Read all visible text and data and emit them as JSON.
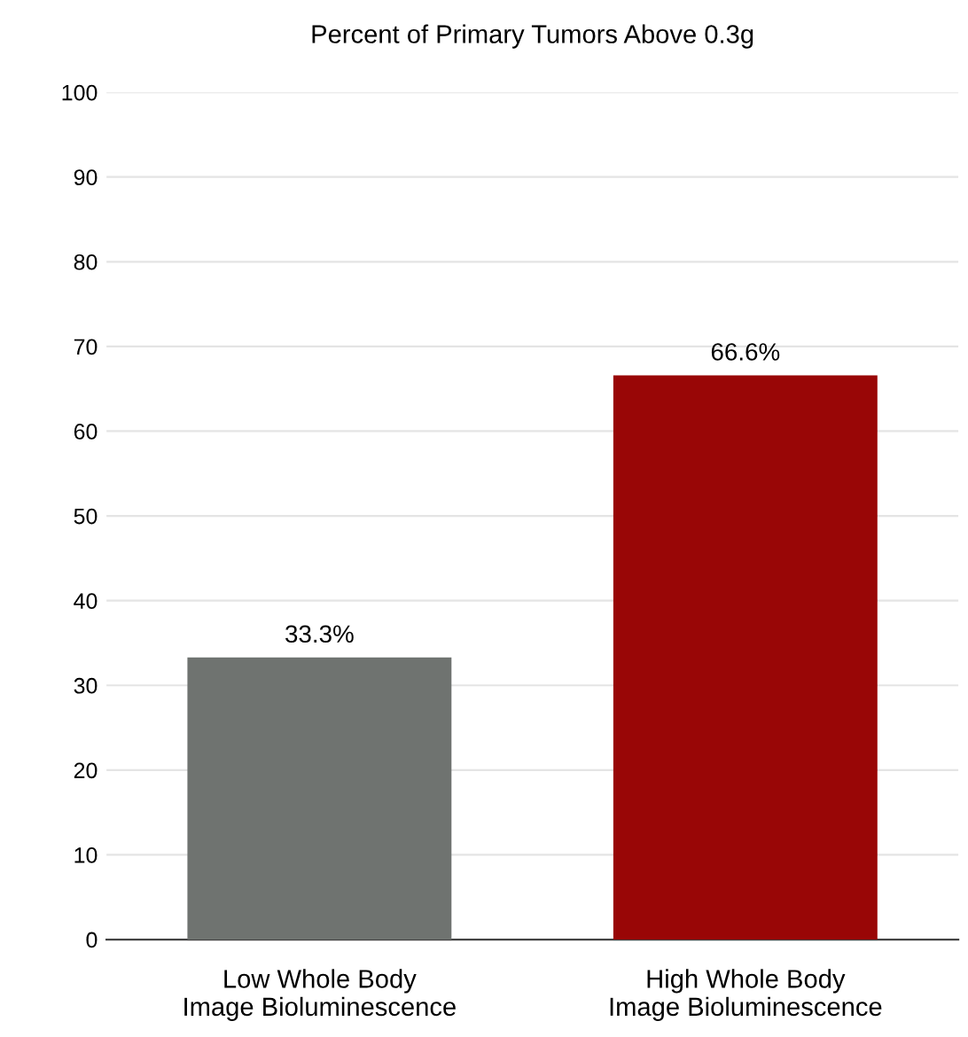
{
  "chart_data": {
    "type": "bar",
    "title": "Percent of Primary Tumors Above 0.3g",
    "categories": [
      "Low Whole Body\nImage Bioluminescence",
      "High Whole Body\nImage Bioluminescence"
    ],
    "values": [
      33.3,
      66.6
    ],
    "colors": [
      "#6f7370",
      "#990606"
    ],
    "value_labels": [
      "33.3%",
      "66.6%"
    ],
    "ylim": [
      0,
      100
    ],
    "yticks": [
      0,
      10,
      20,
      30,
      40,
      50,
      60,
      70,
      80,
      90,
      100
    ],
    "grid": "y"
  }
}
